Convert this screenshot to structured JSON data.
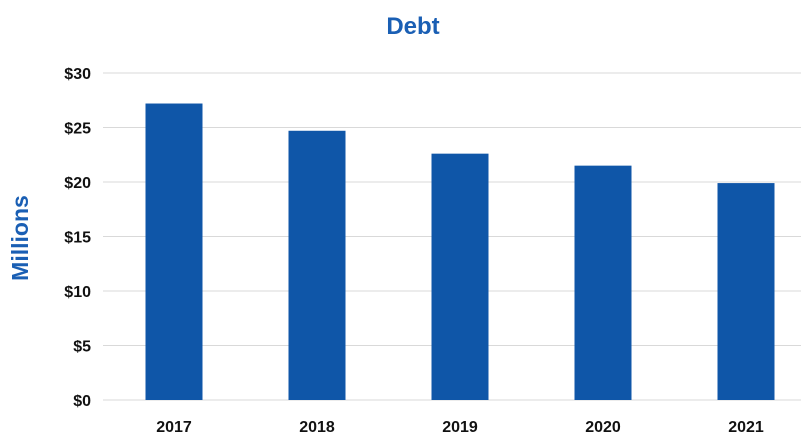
{
  "chart_data": {
    "type": "bar",
    "title": "Debt",
    "xlabel": "",
    "ylabel": "Millions",
    "categories": [
      "2017",
      "2018",
      "2019",
      "2020",
      "2021"
    ],
    "values": [
      27.2,
      24.7,
      22.6,
      21.5,
      19.9
    ],
    "ylim": [
      0,
      30
    ],
    "yticks": [
      0,
      5,
      10,
      15,
      20,
      25,
      30
    ],
    "ytick_labels": [
      "$0",
      "$5",
      "$10",
      "$15",
      "$20",
      "$25",
      "$30"
    ],
    "grid": true,
    "legend": "none",
    "colors": {
      "bar": "#0f56a8",
      "title": "#1a5fb4",
      "ylabel": "#1a5fb4",
      "grid": "#d9d9d9"
    }
  }
}
